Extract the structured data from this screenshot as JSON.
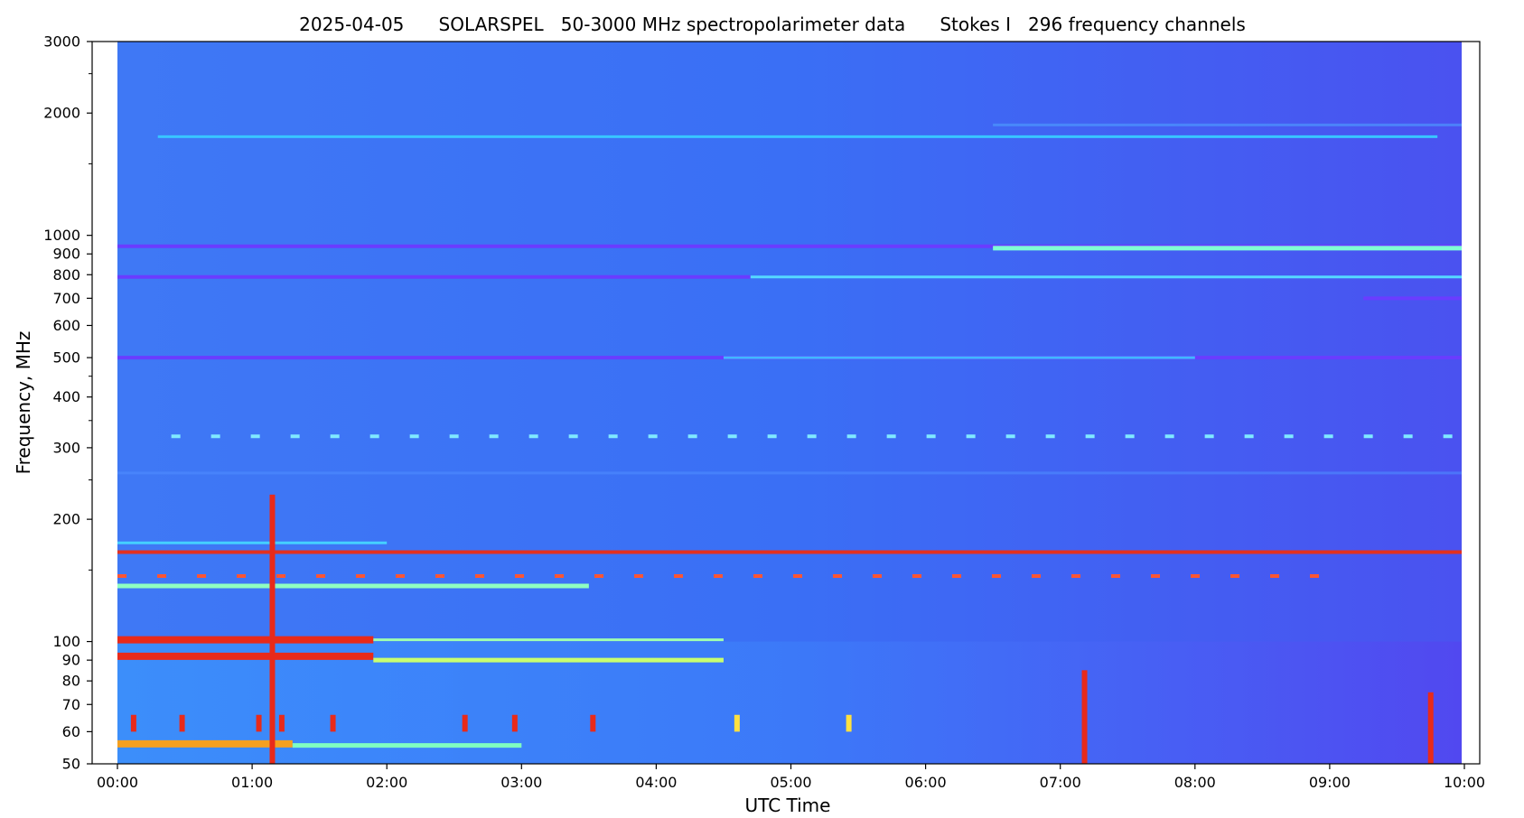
{
  "chart_data": {
    "type": "heatmap",
    "title": "2025-04-05      SOLARSPEL   50-3000 MHz spectropolarimeter data      Stokes I   296 frequency channels",
    "xlabel": "UTC Time",
    "ylabel": "Frequency, MHz",
    "y_scale": "log",
    "ylim": [
      50,
      3000
    ],
    "xlim": [
      "00:00",
      "10:00"
    ],
    "x_ticks": [
      "00:00",
      "01:00",
      "02:00",
      "03:00",
      "04:00",
      "05:00",
      "06:00",
      "07:00",
      "08:00",
      "09:00",
      "10:00"
    ],
    "y_ticks": [
      {
        "value": 50,
        "label": "50"
      },
      {
        "value": 60,
        "label": "60"
      },
      {
        "value": 70,
        "label": "70"
      },
      {
        "value": 80,
        "label": "80"
      },
      {
        "value": 90,
        "label": "90"
      },
      {
        "value": 100,
        "label": "100"
      },
      {
        "value": 200,
        "label": "200"
      },
      {
        "value": 300,
        "label": "300"
      },
      {
        "value": 400,
        "label": "400"
      },
      {
        "value": 500,
        "label": "500"
      },
      {
        "value": 600,
        "label": "600"
      },
      {
        "value": 700,
        "label": "700"
      },
      {
        "value": 800,
        "label": "800"
      },
      {
        "value": 900,
        "label": "900"
      },
      {
        "value": 1000,
        "label": "1000"
      },
      {
        "value": 2000,
        "label": "2000"
      },
      {
        "value": 3000,
        "label": "3000"
      }
    ],
    "y_minor_ticks": [
      150,
      250,
      350,
      450,
      1500,
      2500
    ],
    "data_end_hours": 9.98,
    "background_color": "#3a6ff5",
    "colormap": "rainbow",
    "bands": [
      {
        "freq": 1750,
        "intensity": "light",
        "color": "#38c6ff",
        "start": 0.3,
        "end": 9.8
      },
      {
        "freq": 1870,
        "intensity": "faint",
        "color": "#4fa0ff",
        "start": 6.5,
        "end": 10.0
      },
      {
        "freq": 940,
        "intensity": "interference",
        "color": "#6a3cff",
        "start": 0.0,
        "end": 10.0
      },
      {
        "freq": 930,
        "intensity": "bright",
        "color": "#7fffd4",
        "start": 6.5,
        "end": 10.0
      },
      {
        "freq": 790,
        "intensity": "interference",
        "color": "#6a3cff",
        "start": 0.0,
        "end": 4.7
      },
      {
        "freq": 790,
        "intensity": "light",
        "color": "#55d8ff",
        "start": 4.7,
        "end": 10.0
      },
      {
        "freq": 700,
        "intensity": "interference",
        "color": "#6a3cff",
        "start": 9.25,
        "end": 10.0
      },
      {
        "freq": 500,
        "intensity": "interference",
        "color": "#6a3cff",
        "start": 0.0,
        "end": 10.0
      },
      {
        "freq": 500,
        "intensity": "light",
        "color": "#3fb8ff",
        "start": 4.5,
        "end": 8.0
      },
      {
        "freq": 320,
        "intensity": "dashed",
        "color": "#7fe9ff",
        "start": 0.4,
        "end": 10.0
      },
      {
        "freq": 260,
        "intensity": "faint",
        "color": "#4f8cff",
        "start": 0.0,
        "end": 10.0
      },
      {
        "freq": 175,
        "intensity": "light",
        "color": "#45d0ff",
        "start": 0.0,
        "end": 2.0
      },
      {
        "freq": 166,
        "intensity": "interference",
        "color": "#e33020",
        "start": 0.0,
        "end": 10.0
      },
      {
        "freq": 145,
        "intensity": "dashed",
        "color": "#ff5533",
        "start": 0.0,
        "end": 9.0
      },
      {
        "freq": 137,
        "intensity": "bright",
        "color": "#8fffc0",
        "start": 0.0,
        "end": 3.5
      },
      {
        "freq": 101,
        "intensity": "strong",
        "color": "#e82a1a",
        "start": 0.0,
        "end": 1.9
      },
      {
        "freq": 101,
        "intensity": "light",
        "color": "#9fffb0",
        "start": 1.9,
        "end": 4.5
      },
      {
        "freq": 92,
        "intensity": "strong",
        "color": "#e82a1a",
        "start": 0.0,
        "end": 1.9
      },
      {
        "freq": 90,
        "intensity": "bright",
        "color": "#c8ff70",
        "start": 1.9,
        "end": 4.5
      },
      {
        "freq": 56,
        "intensity": "strong",
        "color": "#f5a020",
        "start": 0.0,
        "end": 1.3
      },
      {
        "freq": 55.5,
        "intensity": "bright",
        "color": "#80ffc0",
        "start": 1.3,
        "end": 3.0
      }
    ],
    "bursts": [
      {
        "time": 0.12,
        "f_low": 60,
        "f_high": 66,
        "color": "#e82a1a"
      },
      {
        "time": 0.48,
        "f_low": 60,
        "f_high": 66,
        "color": "#e82a1a"
      },
      {
        "time": 1.05,
        "f_low": 60,
        "f_high": 66,
        "color": "#e82a1a"
      },
      {
        "time": 1.15,
        "f_low": 50,
        "f_high": 230,
        "color": "#e82a1a"
      },
      {
        "time": 1.22,
        "f_low": 60,
        "f_high": 66,
        "color": "#e82a1a"
      },
      {
        "time": 1.6,
        "f_low": 60,
        "f_high": 66,
        "color": "#e82a1a"
      },
      {
        "time": 2.58,
        "f_low": 60,
        "f_high": 66,
        "color": "#e82a1a"
      },
      {
        "time": 2.95,
        "f_low": 60,
        "f_high": 66,
        "color": "#e82a1a"
      },
      {
        "time": 3.53,
        "f_low": 60,
        "f_high": 66,
        "color": "#e82a1a"
      },
      {
        "time": 4.6,
        "f_low": 60,
        "f_high": 66,
        "color": "#ffe040"
      },
      {
        "time": 5.43,
        "f_low": 60,
        "f_high": 66,
        "color": "#ffe040"
      },
      {
        "time": 7.18,
        "f_low": 50,
        "f_high": 85,
        "color": "#e82a1a"
      },
      {
        "time": 9.75,
        "f_low": 50,
        "f_high": 75,
        "color": "#e82a1a"
      }
    ]
  }
}
